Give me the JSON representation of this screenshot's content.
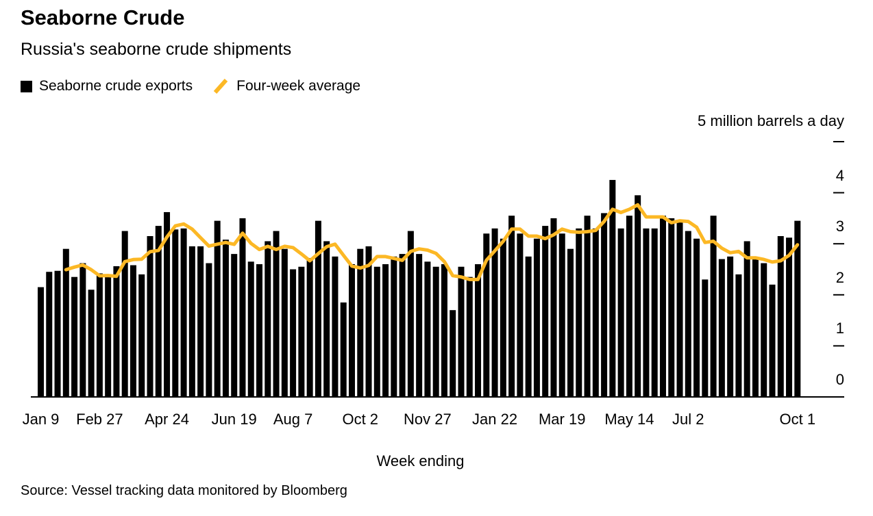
{
  "header": {
    "title": "Seaborne Crude",
    "subtitle": "Russia's seaborne crude shipments"
  },
  "legend": {
    "exports_label": "Seaborne crude exports",
    "exports_color": "#000000",
    "average_label": "Four-week average",
    "average_color": "#FCB825"
  },
  "source": "Source: Vessel tracking data monitored by Bloomberg",
  "chart_data": {
    "type": "bar",
    "title": "Seaborne Crude",
    "subtitle": "Russia's seaborne crude shipments",
    "unit_label": "5 million barrels a day",
    "xlabel": "Week ending",
    "ylabel": "million barrels a day",
    "ylim": [
      0,
      5
    ],
    "yticks": [
      0,
      1,
      2,
      3,
      4,
      5
    ],
    "ytick_labels": [
      "0",
      "1",
      "2",
      "3",
      "4"
    ],
    "grid": false,
    "legend_position": "top-left",
    "x_ticks": [
      {
        "index": 0,
        "label": "Jan 9"
      },
      {
        "index": 7,
        "label": "Feb 27"
      },
      {
        "index": 15,
        "label": "Apr 24"
      },
      {
        "index": 23,
        "label": "Jun 19"
      },
      {
        "index": 30,
        "label": "Aug 7"
      },
      {
        "index": 38,
        "label": "Oct 2"
      },
      {
        "index": 46,
        "label": "Nov 27"
      },
      {
        "index": 54,
        "label": "Jan 22"
      },
      {
        "index": 62,
        "label": "Mar 19"
      },
      {
        "index": 70,
        "label": "May 14"
      },
      {
        "index": 77,
        "label": "Jul 2"
      },
      {
        "index": 90,
        "label": "Oct 1"
      }
    ],
    "bar_series": {
      "name": "Seaborne crude exports",
      "color": "#000000",
      "values": [
        2.15,
        2.45,
        2.47,
        2.9,
        2.35,
        2.62,
        2.1,
        2.42,
        2.37,
        2.56,
        3.25,
        2.58,
        2.4,
        3.15,
        3.35,
        3.62,
        3.28,
        3.3,
        2.95,
        2.95,
        2.62,
        3.45,
        3.08,
        2.8,
        3.5,
        2.65,
        2.6,
        3.05,
        3.25,
        2.9,
        2.5,
        2.55,
        2.72,
        3.45,
        3.05,
        2.75,
        1.85,
        2.6,
        2.9,
        2.95,
        2.55,
        2.6,
        2.75,
        2.8,
        3.25,
        2.8,
        2.65,
        2.55,
        2.6,
        1.7,
        2.55,
        2.35,
        2.6,
        3.2,
        3.3,
        3.1,
        3.55,
        3.2,
        2.75,
        3.1,
        3.35,
        3.5,
        3.2,
        2.9,
        3.3,
        3.55,
        3.3,
        3.6,
        4.25,
        3.3,
        3.55,
        3.95,
        3.3,
        3.3,
        3.55,
        3.5,
        3.45,
        3.25,
        3.1,
        2.3,
        3.55,
        2.7,
        2.75,
        2.4,
        3.05,
        2.7,
        2.62,
        2.2,
        3.15,
        3.12,
        3.45
      ]
    },
    "line_series": {
      "name": "Four-week average",
      "color": "#FCB825",
      "window": 4,
      "derived": "4-week rolling mean of bar_series"
    }
  }
}
